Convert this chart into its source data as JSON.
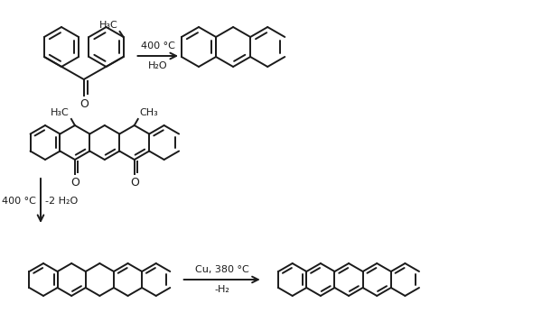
{
  "bg_color": "#ffffff",
  "line_color": "#1a1a1a",
  "lw": 1.4,
  "r1_arrow_top": "400 °C",
  "r1_arrow_bot": "H₂O",
  "r2_arrow_left": "400 °C",
  "r2_arrow_right": "-2 H₂O",
  "r3_arrow_top": "Cu, 380 °C",
  "r3_arrow_bot": "-H₂"
}
